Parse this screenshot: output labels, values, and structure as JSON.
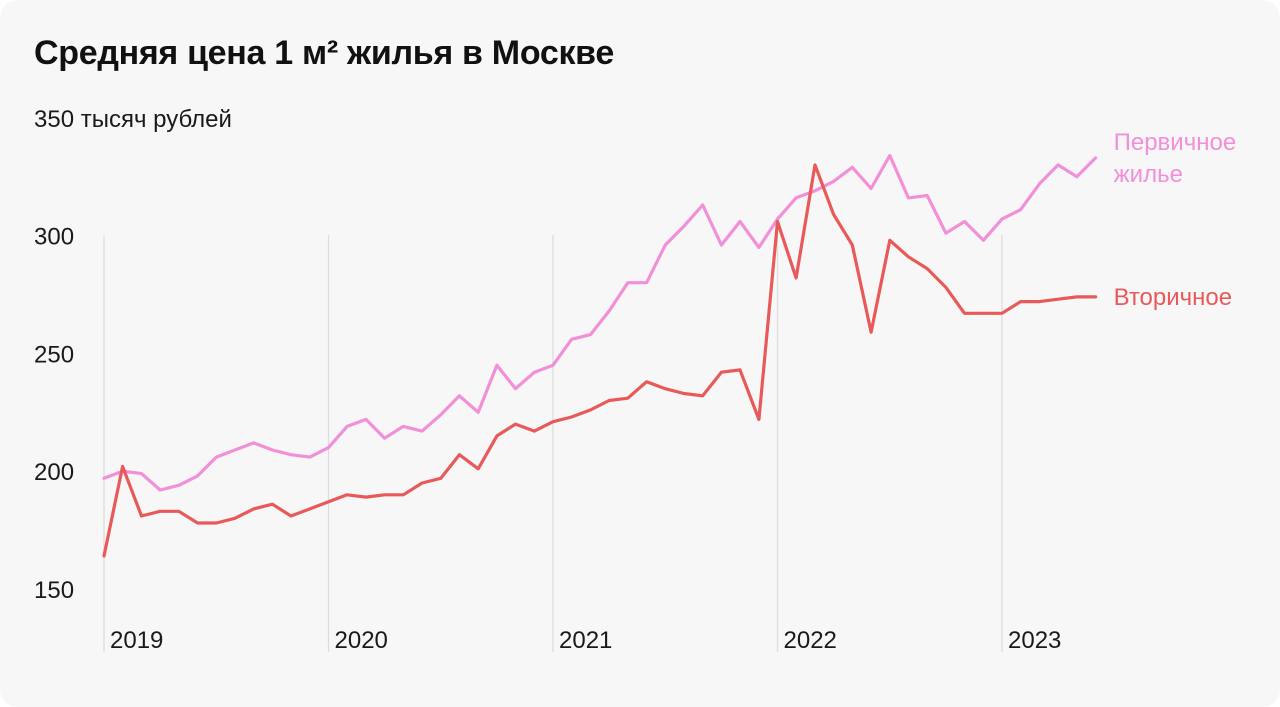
{
  "title": "Средняя цена 1 м² жилья в Москве",
  "chart_data": {
    "type": "line",
    "title": "Средняя цена 1 м² жилья в Москве",
    "ylabel": "",
    "ytick_labels": [
      "350 тысяч рублей",
      "300",
      "250",
      "200",
      "150"
    ],
    "yticks": [
      350,
      300,
      250,
      200,
      150
    ],
    "ylim": [
      150,
      350
    ],
    "x_ticks": [
      {
        "label": "2019",
        "x": 2019.0
      },
      {
        "label": "2020",
        "x": 2020.0
      },
      {
        "label": "2021",
        "x": 2021.0
      },
      {
        "label": "2022",
        "x": 2022.0
      },
      {
        "label": "2023",
        "x": 2023.0
      }
    ],
    "grid": "vertical lines at year starts",
    "series": [
      {
        "name": "Первичное жилье",
        "label_lines": [
          "Первичное",
          "жилье"
        ],
        "color": "#f28fd9",
        "x": [
          2019.0,
          2019.083,
          2019.167,
          2019.25,
          2019.333,
          2019.417,
          2019.5,
          2019.583,
          2019.667,
          2019.75,
          2019.833,
          2019.917,
          2020.0,
          2020.083,
          2020.167,
          2020.25,
          2020.333,
          2020.417,
          2020.5,
          2020.583,
          2020.667,
          2020.75,
          2020.833,
          2020.917,
          2021.0,
          2021.083,
          2021.167,
          2021.25,
          2021.333,
          2021.417,
          2021.5,
          2021.583,
          2021.667,
          2021.75,
          2021.833,
          2021.917,
          2022.0,
          2022.083,
          2022.167,
          2022.25,
          2022.333,
          2022.417,
          2022.5,
          2022.583,
          2022.667,
          2022.75,
          2022.833,
          2022.917,
          2023.0,
          2023.083,
          2023.167,
          2023.25,
          2023.333,
          2023.417,
          2023.5
        ],
        "values": [
          197,
          200,
          199,
          192,
          194,
          198,
          206,
          209,
          212,
          209,
          207,
          206,
          210,
          219,
          222,
          214,
          219,
          217,
          224,
          232,
          225,
          245,
          235,
          242,
          245,
          256,
          258,
          268,
          280,
          280,
          296,
          304,
          313,
          296,
          306,
          295,
          307,
          316,
          319,
          323,
          329,
          320,
          334,
          316,
          317,
          301,
          306,
          298,
          307,
          311,
          322,
          330,
          325,
          333,
          null
        ]
      },
      {
        "name": "Вторичное",
        "label_lines": [
          "Вторичное"
        ],
        "color": "#e85a5a",
        "x": [
          2019.0,
          2019.083,
          2019.167,
          2019.25,
          2019.333,
          2019.417,
          2019.5,
          2019.583,
          2019.667,
          2019.75,
          2019.833,
          2019.917,
          2020.0,
          2020.083,
          2020.167,
          2020.25,
          2020.333,
          2020.417,
          2020.5,
          2020.583,
          2020.667,
          2020.75,
          2020.833,
          2020.917,
          2021.0,
          2021.083,
          2021.167,
          2021.25,
          2021.333,
          2021.417,
          2021.5,
          2021.583,
          2021.667,
          2021.75,
          2021.833,
          2021.917,
          2022.0,
          2022.083,
          2022.167,
          2022.25,
          2022.333,
          2022.417,
          2022.5,
          2022.583,
          2022.667,
          2022.75,
          2022.833,
          2022.917,
          2023.0,
          2023.083,
          2023.167,
          2023.25,
          2023.333,
          2023.417,
          2023.5
        ],
        "values": [
          164,
          202,
          181,
          183,
          183,
          178,
          178,
          180,
          184,
          186,
          181,
          184,
          187,
          190,
          189,
          190,
          190,
          195,
          197,
          207,
          201,
          215,
          220,
          217,
          221,
          223,
          226,
          230,
          231,
          238,
          235,
          233,
          232,
          242,
          243,
          222,
          306,
          282,
          330,
          309,
          296,
          259,
          298,
          291,
          286,
          278,
          267,
          267,
          267,
          272,
          272,
          273,
          274,
          274,
          null
        ]
      }
    ]
  }
}
